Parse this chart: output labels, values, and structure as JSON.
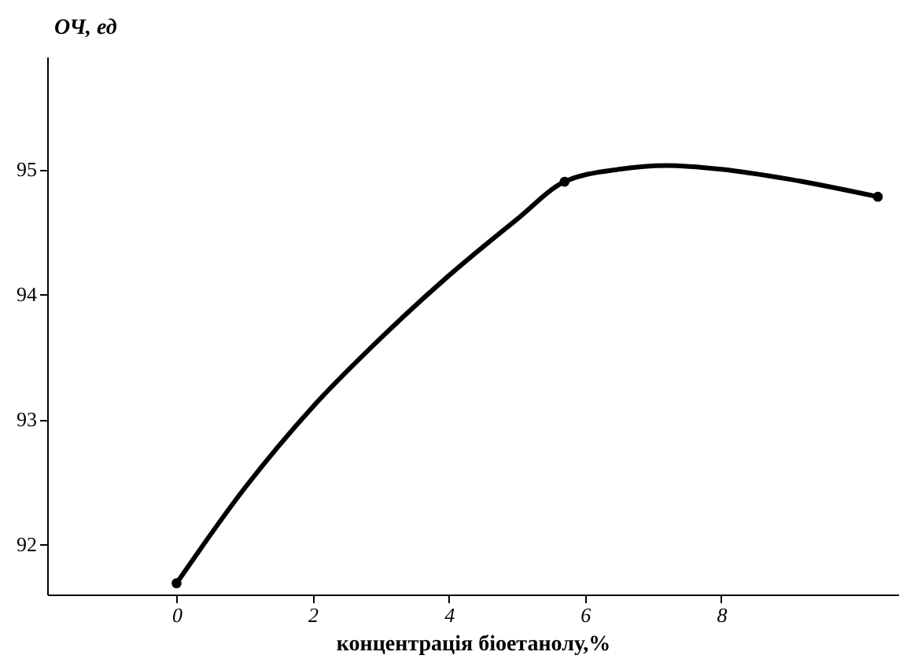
{
  "chart_data": {
    "type": "line",
    "ylabel": "ОЧ, ед",
    "xlabel": "концентрація біоетанолу,%",
    "series": [
      {
        "color": "#000000",
        "x": [
          0,
          1,
          2,
          3,
          4,
          5,
          5.7,
          6.5,
          7.2,
          8,
          9,
          10.3
        ],
        "values": [
          91.69,
          92.45,
          93.1,
          93.65,
          94.15,
          94.6,
          94.9,
          95.0,
          95.03,
          95.0,
          94.92,
          94.78
        ],
        "marker": "none"
      },
      {
        "type": "scatter",
        "color": "#000000",
        "x": [
          0,
          5.7,
          10.3
        ],
        "values": [
          91.69,
          94.9,
          94.78
        ],
        "marker": "circle"
      }
    ],
    "xlim": [
      -1.9,
      10.6
    ],
    "ylim": [
      91.6,
      95.9
    ],
    "xticks": [
      0,
      2,
      4,
      6,
      8
    ],
    "yticks": [
      92,
      93,
      94,
      95
    ],
    "grid": false
  }
}
